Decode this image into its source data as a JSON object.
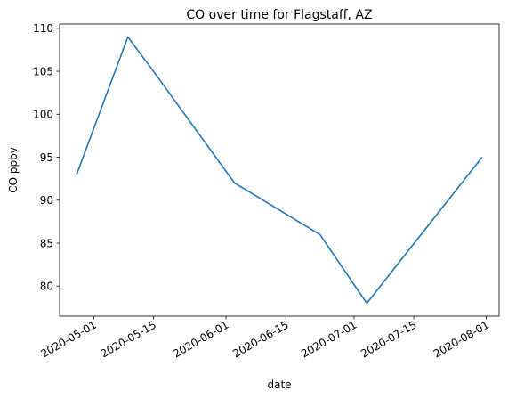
{
  "chart_data": {
    "type": "line",
    "title": "CO over time for Flagstaff, AZ",
    "xlabel": "date",
    "ylabel": "CO ppbv",
    "x": [
      "2020-04-27",
      "2020-05-09",
      "2020-05-15",
      "2020-06-03",
      "2020-06-23",
      "2020-07-04",
      "2020-07-31"
    ],
    "series": [
      {
        "values": [
          93,
          109,
          105,
          92,
          86,
          78,
          95
        ]
      }
    ],
    "xticks": [
      "2020-05-01",
      "2020-05-15",
      "2020-06-01",
      "2020-06-15",
      "2020-07-01",
      "2020-07-15",
      "2020-08-01"
    ],
    "yticks": [
      80,
      85,
      90,
      95,
      100,
      105,
      110
    ],
    "xlim": [
      "2020-04-23",
      "2020-08-04"
    ],
    "ylim": [
      76.5,
      110.5
    ],
    "grid": false,
    "legend": "none",
    "colors": {
      "line": "#1f77b4",
      "axes": "#000000",
      "background": "#ffffff"
    }
  }
}
